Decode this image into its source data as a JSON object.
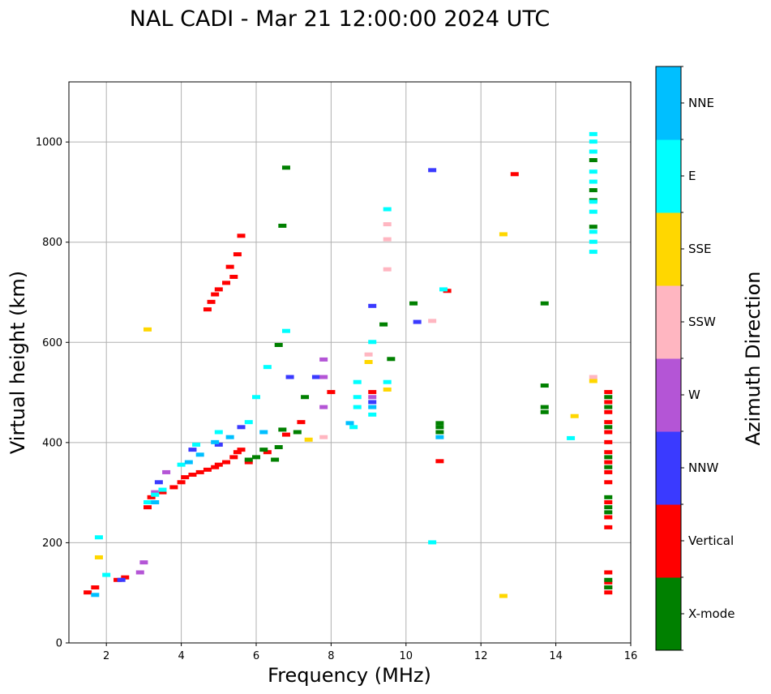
{
  "chart_data": {
    "type": "scatter",
    "title": "NAL CADI - Mar 21 12:00:00 2024 UTC",
    "xlabel": "Frequency (MHz)",
    "ylabel": "Virtual height (km)",
    "xlim": [
      1,
      16
    ],
    "ylim": [
      0,
      1120
    ],
    "xticks": [
      2,
      4,
      6,
      8,
      10,
      12,
      14,
      16
    ],
    "yticks": [
      0,
      200,
      400,
      600,
      800,
      1000
    ],
    "grid": true,
    "colorbar": {
      "label": "Azimuth Direction",
      "categories": [
        "X-mode",
        "Vertical",
        "NNW",
        "W",
        "SSW",
        "SSE",
        "E",
        "NNE"
      ],
      "colors": {
        "X-mode": "#008000",
        "Vertical": "#ff0000",
        "NNW": "#3a3aff",
        "W": "#b455d6",
        "SSW": "#ffb6c1",
        "SSE": "#ffd700",
        "E": "#00ffff",
        "NNE": "#00bfff"
      }
    },
    "series": [
      {
        "name": "Vertical",
        "points": [
          [
            1.5,
            100
          ],
          [
            1.7,
            110
          ],
          [
            2.3,
            125
          ],
          [
            2.5,
            130
          ],
          [
            3.1,
            270
          ],
          [
            3.2,
            290
          ],
          [
            3.5,
            300
          ],
          [
            3.8,
            310
          ],
          [
            4.0,
            320
          ],
          [
            4.1,
            330
          ],
          [
            4.3,
            335
          ],
          [
            4.5,
            340
          ],
          [
            4.7,
            345
          ],
          [
            4.9,
            350
          ],
          [
            5.0,
            355
          ],
          [
            5.2,
            360
          ],
          [
            5.4,
            370
          ],
          [
            5.5,
            380
          ],
          [
            5.6,
            385
          ],
          [
            4.7,
            665
          ],
          [
            4.8,
            680
          ],
          [
            4.9,
            695
          ],
          [
            5.0,
            705
          ],
          [
            5.2,
            718
          ],
          [
            5.4,
            730
          ],
          [
            5.3,
            750
          ],
          [
            5.5,
            775
          ],
          [
            5.6,
            812
          ],
          [
            5.8,
            360
          ],
          [
            6.3,
            380
          ],
          [
            6.8,
            415
          ],
          [
            7.2,
            440
          ],
          [
            8.0,
            500
          ],
          [
            9.1,
            500
          ],
          [
            10.9,
            362
          ],
          [
            11.1,
            702
          ],
          [
            12.9,
            935
          ],
          [
            15.4,
            100
          ],
          [
            15.4,
            110
          ],
          [
            15.4,
            120
          ],
          [
            15.4,
            140
          ],
          [
            15.4,
            230
          ],
          [
            15.4,
            250
          ],
          [
            15.4,
            280
          ],
          [
            15.4,
            320
          ],
          [
            15.4,
            340
          ],
          [
            15.4,
            360
          ],
          [
            15.4,
            380
          ],
          [
            15.4,
            400
          ],
          [
            15.4,
            420
          ],
          [
            15.4,
            440
          ],
          [
            15.4,
            460
          ],
          [
            15.4,
            480
          ],
          [
            15.4,
            500
          ]
        ]
      },
      {
        "name": "X-mode",
        "points": [
          [
            5.8,
            365
          ],
          [
            6.0,
            370
          ],
          [
            6.2,
            385
          ],
          [
            6.5,
            365
          ],
          [
            6.6,
            390
          ],
          [
            6.7,
            425
          ],
          [
            6.6,
            594
          ],
          [
            6.7,
            832
          ],
          [
            6.8,
            948
          ],
          [
            7.1,
            420
          ],
          [
            7.3,
            490
          ],
          [
            9.4,
            635
          ],
          [
            9.6,
            566
          ],
          [
            10.2,
            677
          ],
          [
            10.9,
            420
          ],
          [
            10.9,
            430
          ],
          [
            10.9,
            438
          ],
          [
            13.7,
            460
          ],
          [
            13.7,
            470
          ],
          [
            13.7,
            513
          ],
          [
            13.7,
            677
          ],
          [
            15.0,
            830
          ],
          [
            15.0,
            883
          ],
          [
            15.0,
            903
          ],
          [
            15.0,
            963
          ],
          [
            15.4,
            110
          ],
          [
            15.4,
            125
          ],
          [
            15.4,
            260
          ],
          [
            15.4,
            270
          ],
          [
            15.4,
            290
          ],
          [
            15.4,
            350
          ],
          [
            15.4,
            370
          ],
          [
            15.4,
            430
          ],
          [
            15.4,
            470
          ],
          [
            15.4,
            490
          ]
        ]
      },
      {
        "name": "NNW",
        "points": [
          [
            2.4,
            125
          ],
          [
            3.4,
            320
          ],
          [
            4.3,
            385
          ],
          [
            5.0,
            395
          ],
          [
            5.6,
            430
          ],
          [
            6.9,
            530
          ],
          [
            7.6,
            530
          ],
          [
            9.1,
            480
          ],
          [
            9.1,
            672
          ],
          [
            10.3,
            640
          ],
          [
            10.7,
            943
          ]
        ]
      },
      {
        "name": "W",
        "points": [
          [
            2.9,
            140
          ],
          [
            3.0,
            160
          ],
          [
            3.3,
            300
          ],
          [
            3.6,
            340
          ],
          [
            7.8,
            470
          ],
          [
            7.8,
            530
          ],
          [
            7.8,
            565
          ],
          [
            9.1,
            490
          ]
        ]
      },
      {
        "name": "SSW",
        "points": [
          [
            7.8,
            410
          ],
          [
            9.0,
            575
          ],
          [
            9.5,
            745
          ],
          [
            9.5,
            805
          ],
          [
            9.5,
            835
          ],
          [
            10.7,
            642
          ],
          [
            15.0,
            530
          ]
        ]
      },
      {
        "name": "SSE",
        "points": [
          [
            1.8,
            170
          ],
          [
            3.1,
            625
          ],
          [
            7.4,
            405
          ],
          [
            9.0,
            560
          ],
          [
            9.5,
            505
          ],
          [
            12.6,
            815
          ],
          [
            12.6,
            93
          ],
          [
            14.5,
            452
          ],
          [
            15.0,
            522
          ]
        ]
      },
      {
        "name": "E",
        "points": [
          [
            1.8,
            210
          ],
          [
            2.0,
            135
          ],
          [
            3.1,
            280
          ],
          [
            3.3,
            295
          ],
          [
            3.5,
            305
          ],
          [
            4.0,
            355
          ],
          [
            4.4,
            395
          ],
          [
            5.0,
            420
          ],
          [
            5.8,
            440
          ],
          [
            6.0,
            490
          ],
          [
            6.3,
            550
          ],
          [
            6.8,
            622
          ],
          [
            8.6,
            430
          ],
          [
            8.7,
            470
          ],
          [
            8.7,
            490
          ],
          [
            8.7,
            520
          ],
          [
            9.1,
            455
          ],
          [
            9.1,
            600
          ],
          [
            9.5,
            520
          ],
          [
            9.5,
            865
          ],
          [
            10.7,
            200
          ],
          [
            11.0,
            705
          ],
          [
            14.4,
            408
          ],
          [
            15.0,
            780
          ],
          [
            15.0,
            800
          ],
          [
            15.0,
            820
          ],
          [
            15.0,
            860
          ],
          [
            15.0,
            880
          ],
          [
            15.0,
            920
          ],
          [
            15.0,
            940
          ],
          [
            15.0,
            980
          ],
          [
            15.0,
            1000
          ],
          [
            15.0,
            1015
          ]
        ]
      },
      {
        "name": "NNE",
        "points": [
          [
            1.7,
            95
          ],
          [
            3.3,
            280
          ],
          [
            4.2,
            360
          ],
          [
            4.5,
            375
          ],
          [
            4.9,
            400
          ],
          [
            5.3,
            410
          ],
          [
            6.2,
            420
          ],
          [
            8.5,
            438
          ],
          [
            9.1,
            470
          ],
          [
            10.9,
            410
          ]
        ]
      }
    ]
  }
}
